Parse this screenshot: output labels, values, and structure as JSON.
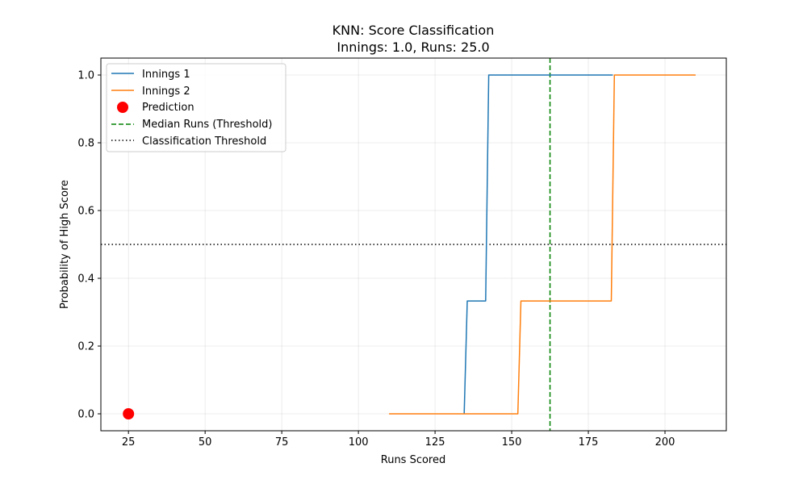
{
  "chart_data": {
    "type": "line",
    "title": "KNN: Score Classification",
    "subtitle": "Innings: 1.0, Runs: 25.0",
    "xlabel": "Runs Scored",
    "ylabel": "Probability of High Score",
    "xlim": [
      16,
      220
    ],
    "ylim": [
      -0.05,
      1.05
    ],
    "x_ticks": [
      25,
      50,
      75,
      100,
      125,
      150,
      175,
      200
    ],
    "x_tick_labels": [
      "25",
      "50",
      "75",
      "100",
      "125",
      "150",
      "175",
      "200"
    ],
    "y_ticks": [
      0.0,
      0.2,
      0.4,
      0.6,
      0.8,
      1.0
    ],
    "y_tick_labels": [
      "0.0",
      "0.2",
      "0.4",
      "0.6",
      "0.8",
      "1.0"
    ],
    "grid": true,
    "legend_position": "top-left",
    "series": [
      {
        "name": "Innings 1",
        "color": "#1f77b4",
        "style": "solid",
        "points": [
          [
            134.5,
            0.0
          ],
          [
            135.5,
            0.333
          ],
          [
            141.5,
            0.333
          ],
          [
            142.5,
            1.0
          ],
          [
            183.0,
            1.0
          ]
        ]
      },
      {
        "name": "Innings 2",
        "color": "#ff7f0e",
        "style": "solid",
        "points": [
          [
            110.0,
            0.0
          ],
          [
            152.0,
            0.0
          ],
          [
            153.0,
            0.333
          ],
          [
            182.5,
            0.333
          ],
          [
            183.5,
            1.0
          ],
          [
            210.0,
            1.0
          ]
        ]
      }
    ],
    "prediction": {
      "name": "Prediction",
      "x": 25.0,
      "y": 0.0,
      "color": "#ff0000"
    },
    "median_line": {
      "name": "Median Runs (Threshold)",
      "x": 162.5,
      "color": "#008000",
      "style": "dashed"
    },
    "threshold_line": {
      "name": "Classification Threshold",
      "y": 0.5,
      "color": "#000000",
      "style": "dotted"
    }
  }
}
